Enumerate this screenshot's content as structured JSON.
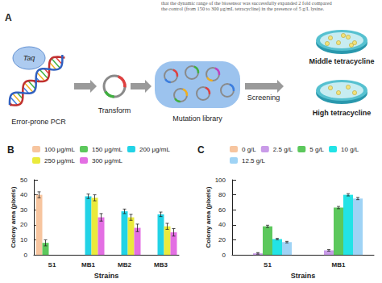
{
  "header_text": [
    "that the dynamic range of the biosensor was successfully expanded 2 fold compared",
    "the control (from 150 to 300 μg/mL tetracycline) in the presence of 5 g/L lysine."
  ],
  "panel_a": {
    "label": "A",
    "enzyme": "Taq",
    "steps": [
      "Error-prone PCR",
      "Transform",
      "Mutation library",
      "Screening"
    ],
    "plates": [
      "Middle tetracycline",
      "High tetracycline"
    ]
  },
  "chart_data": [
    {
      "label": "B",
      "type": "bar",
      "categories": [
        "S1",
        "MB1",
        "MB2",
        "MB3"
      ],
      "x_label": "Strains",
      "y_label": "Colony area (pixels)",
      "ylim": [
        0,
        50
      ],
      "yticks": [
        0,
        10,
        20,
        30,
        40,
        50
      ],
      "grid": false,
      "legend": "top",
      "series": [
        {
          "name": "100 μg/mL",
          "color": "#f7c59f",
          "values": [
            40,
            null,
            null,
            null
          ],
          "errors": [
            2,
            null,
            null,
            null
          ]
        },
        {
          "name": "150 μg/mL",
          "color": "#5cc85c",
          "values": [
            8,
            null,
            null,
            null
          ],
          "errors": [
            2,
            null,
            null,
            null
          ]
        },
        {
          "name": "200 μg/mL",
          "color": "#22d3e6",
          "values": [
            0,
            39,
            29,
            27
          ],
          "errors": [
            0,
            1.5,
            1.5,
            1.5
          ]
        },
        {
          "name": "250 μg/mL",
          "color": "#eaea3c",
          "values": [
            0,
            38,
            25,
            19
          ],
          "errors": [
            0,
            2,
            2,
            2
          ]
        },
        {
          "name": "300 μg/mL",
          "color": "#e36fe3",
          "values": [
            0,
            25,
            18,
            15
          ],
          "errors": [
            0,
            2.5,
            2.5,
            2.5
          ]
        }
      ]
    },
    {
      "label": "C",
      "type": "bar",
      "categories": [
        "S1",
        "MB1"
      ],
      "x_label": "Strains",
      "y_label": "Colony area (pixels)",
      "ylim": [
        0,
        100
      ],
      "yticks": [
        0,
        20,
        40,
        60,
        80,
        100
      ],
      "grid": false,
      "legend": "top",
      "series": [
        {
          "name": "0 g/L",
          "color": "#f7c59f",
          "values": [
            0,
            0
          ],
          "errors": [
            0,
            0
          ]
        },
        {
          "name": "2.5 g/L",
          "color": "#c99be8",
          "values": [
            2,
            6
          ],
          "errors": [
            1,
            1
          ]
        },
        {
          "name": "5 g/L",
          "color": "#5cc85c",
          "values": [
            38,
            63
          ],
          "errors": [
            1.5,
            1.5
          ]
        },
        {
          "name": "10 g/L",
          "color": "#22e3e6",
          "values": [
            21,
            80
          ],
          "errors": [
            1,
            1.5
          ]
        },
        {
          "name": "12.5 g/L",
          "color": "#9fd3f5",
          "values": [
            17,
            75
          ],
          "errors": [
            1,
            1.5
          ]
        }
      ]
    }
  ]
}
